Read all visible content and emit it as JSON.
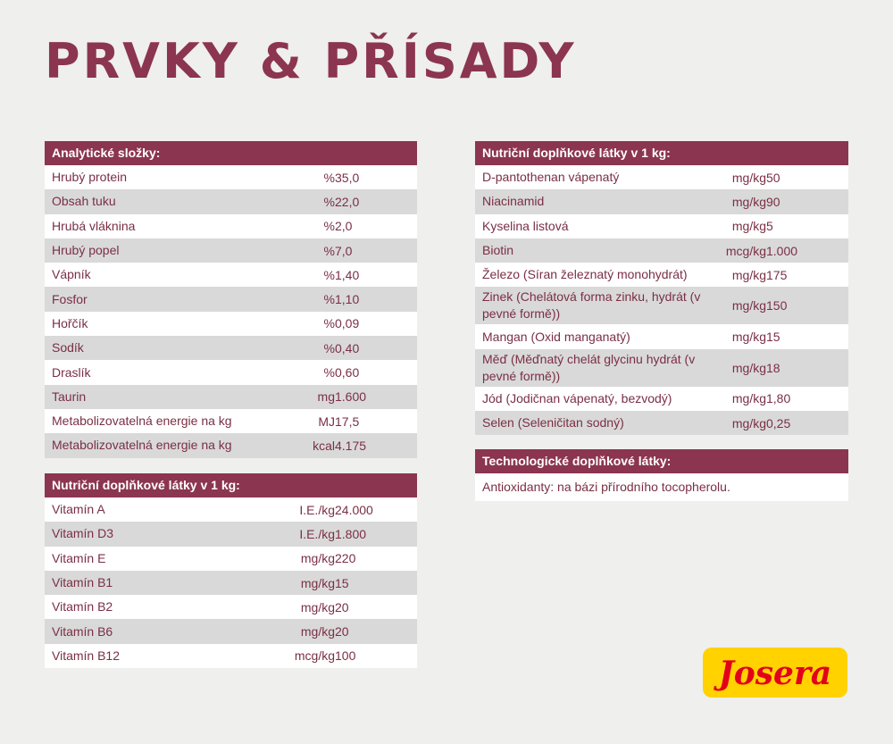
{
  "title": "PRVKY & PŘÍSADY",
  "brand": {
    "logo_text": "Josera",
    "colors": {
      "yellow": "#ffd200",
      "red": "#e2001a"
    }
  },
  "colors": {
    "accent": "#8b3550",
    "row_alt": "#d9d9d9",
    "background": "#efefed"
  },
  "analytic": {
    "header": "Analytické složky:",
    "rows": [
      {
        "name": "Hrubý protein",
        "unit": "%",
        "value": "35,0"
      },
      {
        "name": "Obsah tuku",
        "unit": "%",
        "value": "22,0"
      },
      {
        "name": "Hrubá vláknina",
        "unit": "%",
        "value": "2,0"
      },
      {
        "name": "Hrubý popel",
        "unit": "%",
        "value": "7,0"
      },
      {
        "name": "Vápník",
        "unit": "%",
        "value": "1,40"
      },
      {
        "name": "Fosfor",
        "unit": "%",
        "value": "1,10"
      },
      {
        "name": "Hořčík",
        "unit": "%",
        "value": "0,09"
      },
      {
        "name": "Sodík",
        "unit": "%",
        "value": "0,40"
      },
      {
        "name": "Draslík",
        "unit": "%",
        "value": "0,60"
      },
      {
        "name": "Taurin",
        "unit": "mg",
        "value": "1.600"
      },
      {
        "name": "Metabolizovatelná energie na kg",
        "unit": "MJ",
        "value": "17,5"
      },
      {
        "name": "Metabolizovatelná energie na kg",
        "unit": "kcal",
        "value": "4.175"
      }
    ]
  },
  "vitamins": {
    "header": "Nutriční doplňkové látky v 1 kg:",
    "rows": [
      {
        "name": "Vitamín A",
        "unit": "I.E./kg",
        "value": "24.000"
      },
      {
        "name": "Vitamín D3",
        "unit": "I.E./kg",
        "value": "1.800"
      },
      {
        "name": "Vitamín E",
        "unit": "mg/kg",
        "value": "220"
      },
      {
        "name": "Vitamín B1",
        "unit": "mg/kg",
        "value": "15"
      },
      {
        "name": "Vitamín B2",
        "unit": "mg/kg",
        "value": "20"
      },
      {
        "name": "Vitamín B6",
        "unit": "mg/kg",
        "value": "20"
      },
      {
        "name": "Vitamín B12",
        "unit": "mcg/kg",
        "value": "100"
      }
    ]
  },
  "minerals": {
    "header": "Nutriční doplňkové látky v 1 kg:",
    "rows": [
      {
        "name": "D-pantothenan vápenatý",
        "unit": "mg/kg",
        "value": "50"
      },
      {
        "name": "Niacinamid",
        "unit": "mg/kg",
        "value": "90"
      },
      {
        "name": "Kyselina listová",
        "unit": "mg/kg",
        "value": "5"
      },
      {
        "name": "Biotin",
        "unit": "mcg/kg",
        "value": "1.000"
      },
      {
        "name": "Železo (Síran železnatý monohydrát)",
        "unit": "mg/kg",
        "value": "175"
      },
      {
        "name": "Zinek (Chelátová forma zinku, hydrát (v pevné formě))",
        "unit": "mg/kg",
        "value": "150"
      },
      {
        "name": "Mangan (Oxid manganatý)",
        "unit": "mg/kg",
        "value": "15"
      },
      {
        "name": "Měď (Měďnatý chelát glycinu hydrát (v pevné formě))",
        "unit": "mg/kg",
        "value": "18"
      },
      {
        "name": "Jód (Jodičnan vápenatý, bezvodý)",
        "unit": "mg/kg",
        "value": "1,80"
      },
      {
        "name": "Selen (Seleničitan sodný)",
        "unit": "mg/kg",
        "value": "0,25"
      }
    ]
  },
  "technological": {
    "header": "Technologické doplňkové látky:",
    "text": "Antioxidanty: na bázi přírodního tocopherolu."
  }
}
